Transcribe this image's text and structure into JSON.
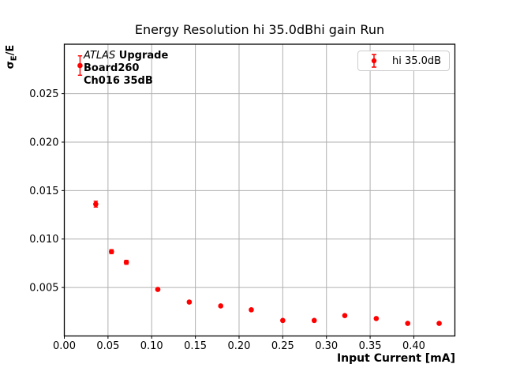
{
  "chart_data": {
    "type": "scatter",
    "title": "Energy Resolution hi 35.0dBhi gain Run",
    "xlabel": "Input Current [mA]",
    "ylabel_parts": {
      "sigma": "σ",
      "sub": "E",
      "rest": "/E"
    },
    "xlim": [
      0,
      0.447
    ],
    "ylim": [
      0,
      0.0301
    ],
    "grid": true,
    "legend": {
      "label": "hi 35.0dB",
      "position": "upper right"
    },
    "annotation": {
      "line1_italic": "ATLAS",
      "line1_bold": " Upgrade",
      "line2": "Board260",
      "line3": "Ch016 35dB"
    },
    "colors": {
      "series": "#ff0000",
      "grid": "#b0b0b0",
      "legend_border": "#cccccc",
      "axes": "#000000"
    },
    "xticks": {
      "values": [
        0.0,
        0.05,
        0.1,
        0.15,
        0.2,
        0.25,
        0.3,
        0.35,
        0.4
      ],
      "labels": [
        "0.00",
        "0.05",
        "0.10",
        "0.15",
        "0.20",
        "0.25",
        "0.30",
        "0.35",
        "0.40"
      ]
    },
    "yticks": {
      "values": [
        0.005,
        0.01,
        0.015,
        0.02,
        0.025
      ],
      "labels": [
        "0.005",
        "0.010",
        "0.015",
        "0.020",
        "0.025"
      ]
    },
    "series": [
      {
        "name": "hi 35.0dB",
        "color": "#ff0000",
        "marker": "circle-with-errorbars",
        "points": [
          {
            "x": 0.018,
            "y": 0.0279,
            "yerr": 0.001
          },
          {
            "x": 0.036,
            "y": 0.0136,
            "yerr": 0.0003
          },
          {
            "x": 0.054,
            "y": 0.0087,
            "yerr": 0.0002
          },
          {
            "x": 0.071,
            "y": 0.0076,
            "yerr": 0.0002
          },
          {
            "x": 0.107,
            "y": 0.0048,
            "yerr": 0.0001
          },
          {
            "x": 0.143,
            "y": 0.0035,
            "yerr": 0.0001
          },
          {
            "x": 0.179,
            "y": 0.0031,
            "yerr": 0.0001
          },
          {
            "x": 0.214,
            "y": 0.0027,
            "yerr": 0.0001
          },
          {
            "x": 0.25,
            "y": 0.0016,
            "yerr": 0.0001
          },
          {
            "x": 0.286,
            "y": 0.0016,
            "yerr": 0.0001
          },
          {
            "x": 0.321,
            "y": 0.0021,
            "yerr": 0.0001
          },
          {
            "x": 0.357,
            "y": 0.0018,
            "yerr": 0.0001
          },
          {
            "x": 0.393,
            "y": 0.0013,
            "yerr": 0.0001
          },
          {
            "x": 0.429,
            "y": 0.0013,
            "yerr": 0.0001
          }
        ]
      }
    ]
  }
}
